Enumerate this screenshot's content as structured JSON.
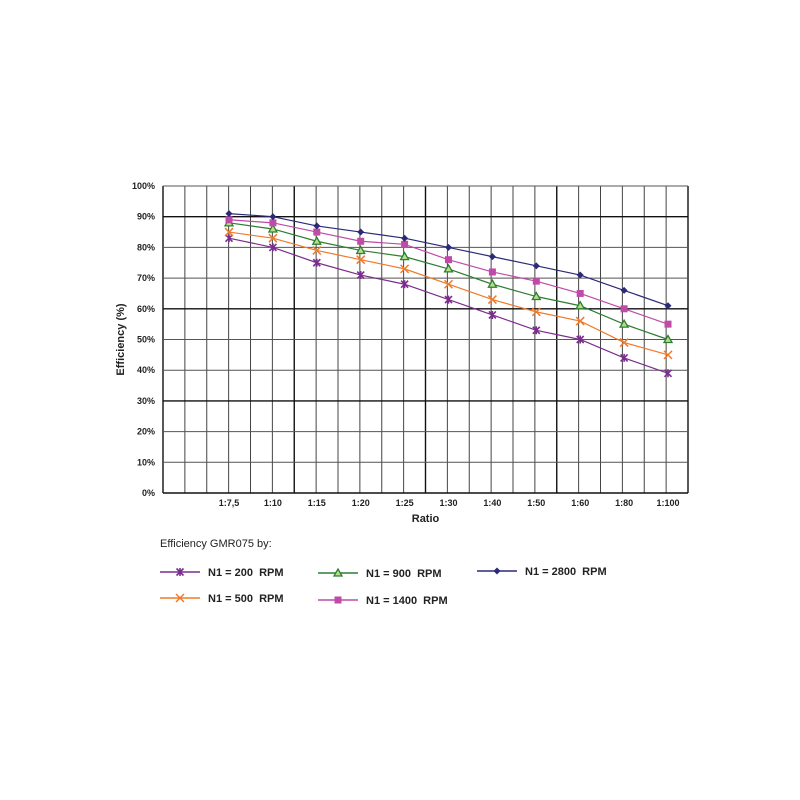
{
  "chart_data": {
    "type": "line",
    "xlabel": "Ratio",
    "ylabel": "Efficiency (%)",
    "ylim": [
      0,
      100
    ],
    "yticks": [
      "0%",
      "10%",
      "20%",
      "30%",
      "40%",
      "50%",
      "60%",
      "70%",
      "80%",
      "90%",
      "100%"
    ],
    "grid": true,
    "legend_title": "Efficiency GMR075 by:",
    "legend_position": "bottom",
    "categories": [
      "1:7,5",
      "1:10",
      "1:15",
      "1:20",
      "1:25",
      "1:30",
      "1:40",
      "1:50",
      "1:60",
      "1:80",
      "1:100"
    ],
    "series": [
      {
        "name": "N1 = 200  RPM",
        "color": "#7b2d8e",
        "marker": "asterisk",
        "values": [
          83,
          80,
          75,
          71,
          68,
          63,
          58,
          53,
          50,
          44,
          39
        ]
      },
      {
        "name": "N1 = 500  RPM",
        "color": "#f07a2a",
        "marker": "x",
        "values": [
          85,
          83,
          79,
          76,
          73,
          68,
          63,
          59,
          56,
          49,
          45
        ]
      },
      {
        "name": "N1 = 900  RPM",
        "color": "#2e7d32",
        "marker": "triangle",
        "values": [
          88,
          86,
          82,
          79,
          77,
          73,
          68,
          64,
          61,
          55,
          50
        ]
      },
      {
        "name": "N1 = 1400  RPM",
        "color": "#c04aa8",
        "marker": "square",
        "values": [
          89,
          88,
          85,
          82,
          81,
          76,
          72,
          69,
          65,
          60,
          55
        ]
      },
      {
        "name": "N1 = 2800  RPM",
        "color": "#2b2a7a",
        "marker": "diamond",
        "values": [
          91,
          90,
          87,
          85,
          83,
          80,
          77,
          74,
          71,
          66,
          61
        ]
      }
    ]
  }
}
